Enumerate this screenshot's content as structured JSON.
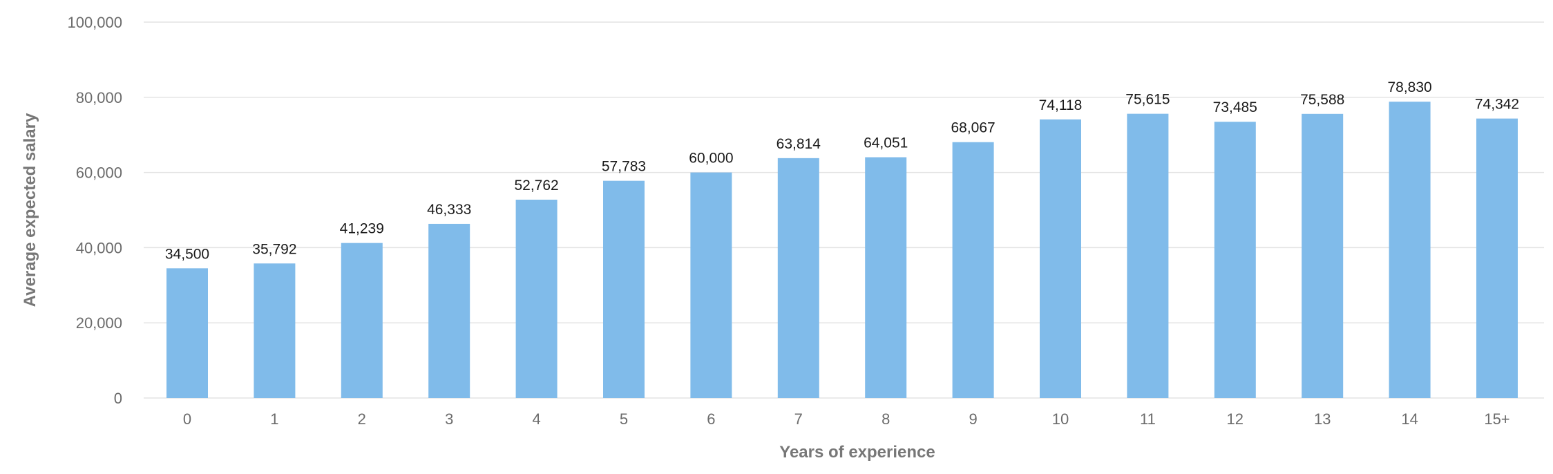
{
  "chart_data": {
    "type": "bar",
    "xlabel": "Years of experience",
    "ylabel": "Average expected salary",
    "ylim": [
      0,
      100000
    ],
    "yticks": [
      0,
      20000,
      40000,
      60000,
      80000,
      100000
    ],
    "ytick_labels": [
      "0",
      "20,000",
      "40,000",
      "60,000",
      "80,000",
      "100,000"
    ],
    "grid": true,
    "legend": "none",
    "bar_color": "#80bbea",
    "categories": [
      "0",
      "1",
      "2",
      "3",
      "4",
      "5",
      "6",
      "7",
      "8",
      "9",
      "10",
      "11",
      "12",
      "13",
      "14",
      "15+"
    ],
    "values": [
      34500,
      35792,
      41239,
      46333,
      52762,
      57783,
      60000,
      63814,
      64051,
      68067,
      74118,
      75615,
      73485,
      75588,
      78830,
      74342
    ],
    "value_labels": [
      "34,500",
      "35,792",
      "41,239",
      "46,333",
      "52,762",
      "57,783",
      "60,000",
      "63,814",
      "64,051",
      "68,067",
      "74,118",
      "75,615",
      "73,485",
      "75,588",
      "78,830",
      "74,342"
    ]
  }
}
